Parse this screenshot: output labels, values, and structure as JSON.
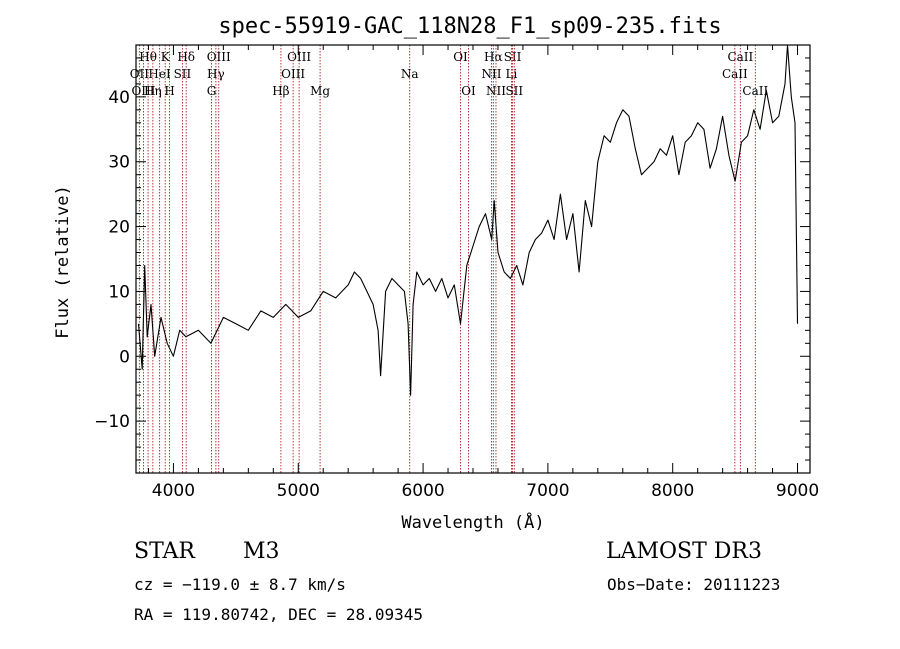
{
  "chart_data": {
    "type": "line",
    "title": "spec-55919-GAC_118N28_F1_sp09-235.fits",
    "xlabel": "Wavelength (Å)",
    "ylabel": "Flux (relative)",
    "xlim": [
      3700,
      9100
    ],
    "ylim": [
      -18,
      48
    ],
    "xticks": [
      4000,
      5000,
      6000,
      7000,
      8000,
      9000
    ],
    "yticks": [
      -10,
      0,
      10,
      20,
      30,
      40
    ],
    "series": [
      {
        "name": "flux",
        "x": [
          3720,
          3750,
          3770,
          3790,
          3820,
          3850,
          3900,
          3950,
          4000,
          4050,
          4100,
          4200,
          4300,
          4400,
          4500,
          4600,
          4700,
          4800,
          4900,
          5000,
          5100,
          5200,
          5300,
          5400,
          5450,
          5500,
          5550,
          5600,
          5640,
          5660,
          5700,
          5750,
          5800,
          5850,
          5880,
          5900,
          5920,
          5950,
          6000,
          6050,
          6100,
          6150,
          6200,
          6250,
          6300,
          6350,
          6400,
          6450,
          6500,
          6550,
          6570,
          6600,
          6650,
          6700,
          6750,
          6800,
          6850,
          6900,
          6950,
          7000,
          7050,
          7100,
          7150,
          7200,
          7250,
          7300,
          7350,
          7400,
          7450,
          7500,
          7550,
          7600,
          7650,
          7700,
          7750,
          7800,
          7850,
          7900,
          7950,
          8000,
          8050,
          8100,
          8150,
          8200,
          8250,
          8300,
          8350,
          8400,
          8450,
          8500,
          8550,
          8600,
          8650,
          8700,
          8750,
          8800,
          8850,
          8900,
          8920,
          8950,
          8980,
          9000
        ],
        "y": [
          5,
          -2,
          14,
          3,
          8,
          0,
          6,
          2,
          0,
          4,
          3,
          4,
          2,
          6,
          5,
          4,
          7,
          6,
          8,
          6,
          7,
          10,
          9,
          11,
          13,
          12,
          10,
          8,
          4,
          -3,
          10,
          12,
          11,
          10,
          5,
          -6,
          8,
          13,
          11,
          12,
          10,
          12,
          9,
          11,
          5,
          14,
          17,
          20,
          22,
          18,
          24,
          16,
          13,
          12,
          14,
          11,
          16,
          18,
          19,
          21,
          18,
          25,
          18,
          22,
          13,
          24,
          20,
          30,
          34,
          33,
          36,
          38,
          37,
          32,
          28,
          29,
          30,
          32,
          31,
          34,
          28,
          33,
          34,
          36,
          35,
          29,
          32,
          37,
          31,
          27,
          33,
          34,
          38,
          35,
          41,
          36,
          37,
          42,
          48,
          40,
          36,
          5
        ]
      }
    ],
    "lines": [
      {
        "label": "Hθ",
        "wl": 3797,
        "row": 0
      },
      {
        "label": "OII",
        "wl": 3727,
        "row": 1
      },
      {
        "label": "OIII",
        "wl": 3760,
        "row": 2
      },
      {
        "label": "K",
        "wl": 3934,
        "row": 0
      },
      {
        "label": "Hδ",
        "wl": 4102,
        "row": 0
      },
      {
        "label": "HeI",
        "wl": 3889,
        "row": 1
      },
      {
        "label": "SII",
        "wl": 4072,
        "row": 1
      },
      {
        "label": "Hη",
        "wl": 3835,
        "row": 2
      },
      {
        "label": "H",
        "wl": 3969,
        "row": 2
      },
      {
        "label": "OIII",
        "wl": 4363,
        "row": 0
      },
      {
        "label": "Hγ",
        "wl": 4340,
        "row": 1
      },
      {
        "label": "G",
        "wl": 4305,
        "row": 2
      },
      {
        "label": "OIII",
        "wl": 5007,
        "row": 0
      },
      {
        "label": "OIII",
        "wl": 4959,
        "row": 1
      },
      {
        "label": "Hβ",
        "wl": 4861,
        "row": 2
      },
      {
        "label": "Mg",
        "wl": 5175,
        "row": 2
      },
      {
        "label": "Na",
        "wl": 5893,
        "row": 1
      },
      {
        "label": "OI",
        "wl": 6300,
        "row": 0
      },
      {
        "label": "OI",
        "wl": 6364,
        "row": 2
      },
      {
        "label": "Hα",
        "wl": 6563,
        "row": 0
      },
      {
        "label": "SII",
        "wl": 6717,
        "row": 0
      },
      {
        "label": "NII",
        "wl": 6548,
        "row": 1
      },
      {
        "label": "Li",
        "wl": 6708,
        "row": 1
      },
      {
        "label": "NII",
        "wl": 6584,
        "row": 2
      },
      {
        "label": "SII",
        "wl": 6731,
        "row": 2
      },
      {
        "label": "CaII",
        "wl": 8542,
        "row": 0
      },
      {
        "label": "CaII",
        "wl": 8498,
        "row": 1
      },
      {
        "label": "CaII",
        "wl": 8662,
        "row": 2
      }
    ]
  },
  "info": {
    "object_class": "STAR",
    "subclass": "M3",
    "survey": "LAMOST DR3",
    "cz": "cz = −119.0 ± 8.7 km/s",
    "obs_date": "Obs−Date: 20111223",
    "coords": "RA = 119.80742, DEC =  28.09345"
  },
  "colors": {
    "line_marker": "#b22222",
    "spectrum": "#000000"
  }
}
